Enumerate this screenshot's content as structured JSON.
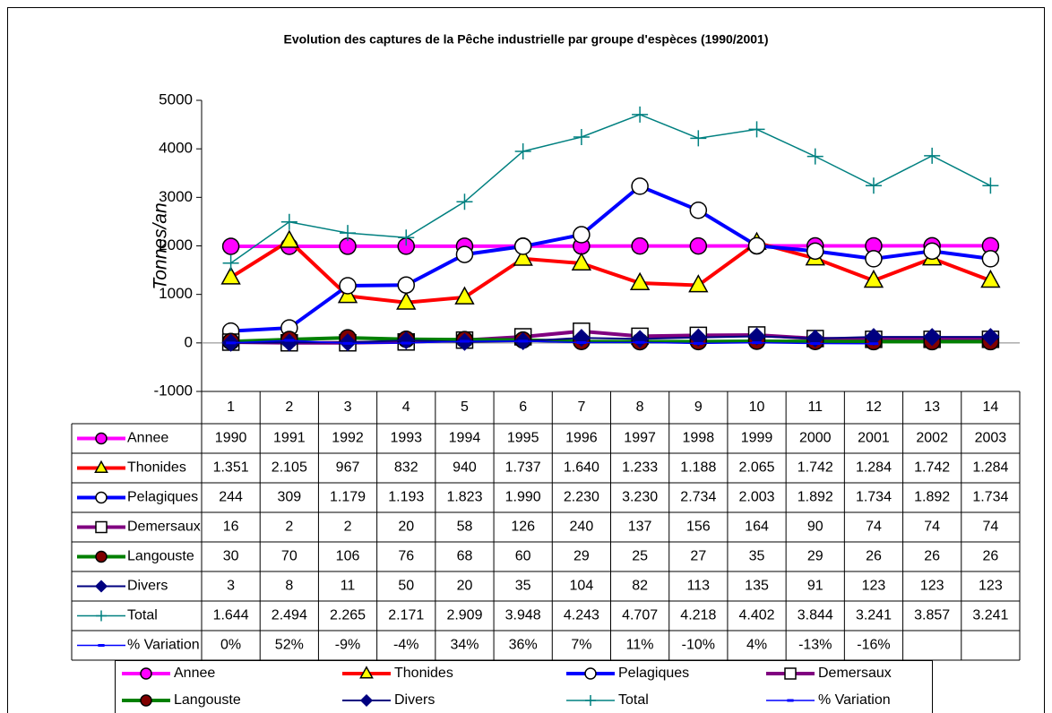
{
  "chart_data": {
    "type": "line",
    "title": "Evolution des captures de la Pêche industrielle par groupe d'espèces (1990/2001)",
    "y_label": "Tonnes/an",
    "categories": [
      1,
      2,
      3,
      4,
      5,
      6,
      7,
      8,
      9,
      10,
      11,
      12,
      13,
      14
    ],
    "ylim": [
      -1000,
      5000
    ],
    "yticks": [
      -1000,
      0,
      1000,
      2000,
      3000,
      4000,
      5000
    ],
    "grid": false,
    "data_table": true,
    "legend": "bottom",
    "series": [
      {
        "name": "Annee",
        "color": "#ff00ff",
        "marker": "circle",
        "marker_fill": "#ff00ff",
        "line_width": 4,
        "values": [
          1990,
          1991,
          1992,
          1993,
          1994,
          1995,
          1996,
          1997,
          1998,
          1999,
          2000,
          2001,
          2002,
          2003
        ]
      },
      {
        "name": "Thonides",
        "color": "#ff0000",
        "marker": "triangle",
        "marker_fill": "#ffff00",
        "line_width": 4,
        "values": [
          1351,
          2105,
          967,
          832,
          940,
          1737,
          1640,
          1233,
          1188,
          2065,
          1742,
          1284,
          1742,
          1284
        ],
        "value_labels": [
          "1.351",
          "2.105",
          "967",
          "832",
          "940",
          "1.737",
          "1.640",
          "1.233",
          "1.188",
          "2.065",
          "1.742",
          "1.284",
          "1.742",
          "1.284"
        ]
      },
      {
        "name": "Pelagiques",
        "color": "#0000ff",
        "marker": "circle",
        "marker_fill": "#ffffff",
        "line_width": 4,
        "values": [
          244,
          309,
          1179,
          1193,
          1823,
          1990,
          2230,
          3230,
          2734,
          2003,
          1892,
          1734,
          1892,
          1734
        ],
        "value_labels": [
          "244",
          "309",
          "1.179",
          "1.193",
          "1.823",
          "1.990",
          "2.230",
          "3.230",
          "2.734",
          "2.003",
          "1.892",
          "1.734",
          "1.892",
          "1.734"
        ]
      },
      {
        "name": "Demersaux",
        "color": "#800080",
        "marker": "square",
        "marker_fill": "#ffffff",
        "line_width": 4,
        "values": [
          16,
          2,
          2,
          20,
          58,
          126,
          240,
          137,
          156,
          164,
          90,
          74,
          74,
          74
        ]
      },
      {
        "name": "Langouste",
        "color": "#008000",
        "marker": "circle",
        "marker_fill": "#800000",
        "line_width": 4,
        "values": [
          30,
          70,
          106,
          76,
          68,
          60,
          29,
          25,
          27,
          35,
          29,
          26,
          26,
          26
        ]
      },
      {
        "name": "Divers",
        "color": "#000080",
        "marker": "diamond",
        "marker_fill": "#000080",
        "line_width": 2,
        "values": [
          3,
          8,
          11,
          50,
          20,
          35,
          104,
          82,
          113,
          135,
          91,
          123,
          123,
          123
        ]
      },
      {
        "name": "Total",
        "color": "#008080",
        "marker": "plus",
        "marker_fill": "#008080",
        "line_width": 1.5,
        "values": [
          1644,
          2494,
          2265,
          2171,
          2909,
          3948,
          4243,
          4707,
          4218,
          4402,
          3844,
          3241,
          3857,
          3241
        ],
        "value_labels": [
          "1.644",
          "2.494",
          "2.265",
          "2.171",
          "2.909",
          "3.948",
          "4.243",
          "4.707",
          "4.218",
          "4.402",
          "3.844",
          "3.241",
          "3.857",
          "3.241"
        ]
      },
      {
        "name": "% Variation",
        "color": "#0000ff",
        "marker": "dash",
        "marker_fill": "#0000ff",
        "line_width": 1.5,
        "values": [
          0,
          52,
          -9,
          -4,
          34,
          36,
          7,
          11,
          -10,
          4,
          -13,
          -16,
          null,
          null
        ],
        "value_labels": [
          "0%",
          "52%",
          "-9%",
          "-4%",
          "34%",
          "36%",
          "7%",
          "11%",
          "-10%",
          "4%",
          "-13%",
          "-16%",
          null,
          null
        ]
      }
    ]
  }
}
